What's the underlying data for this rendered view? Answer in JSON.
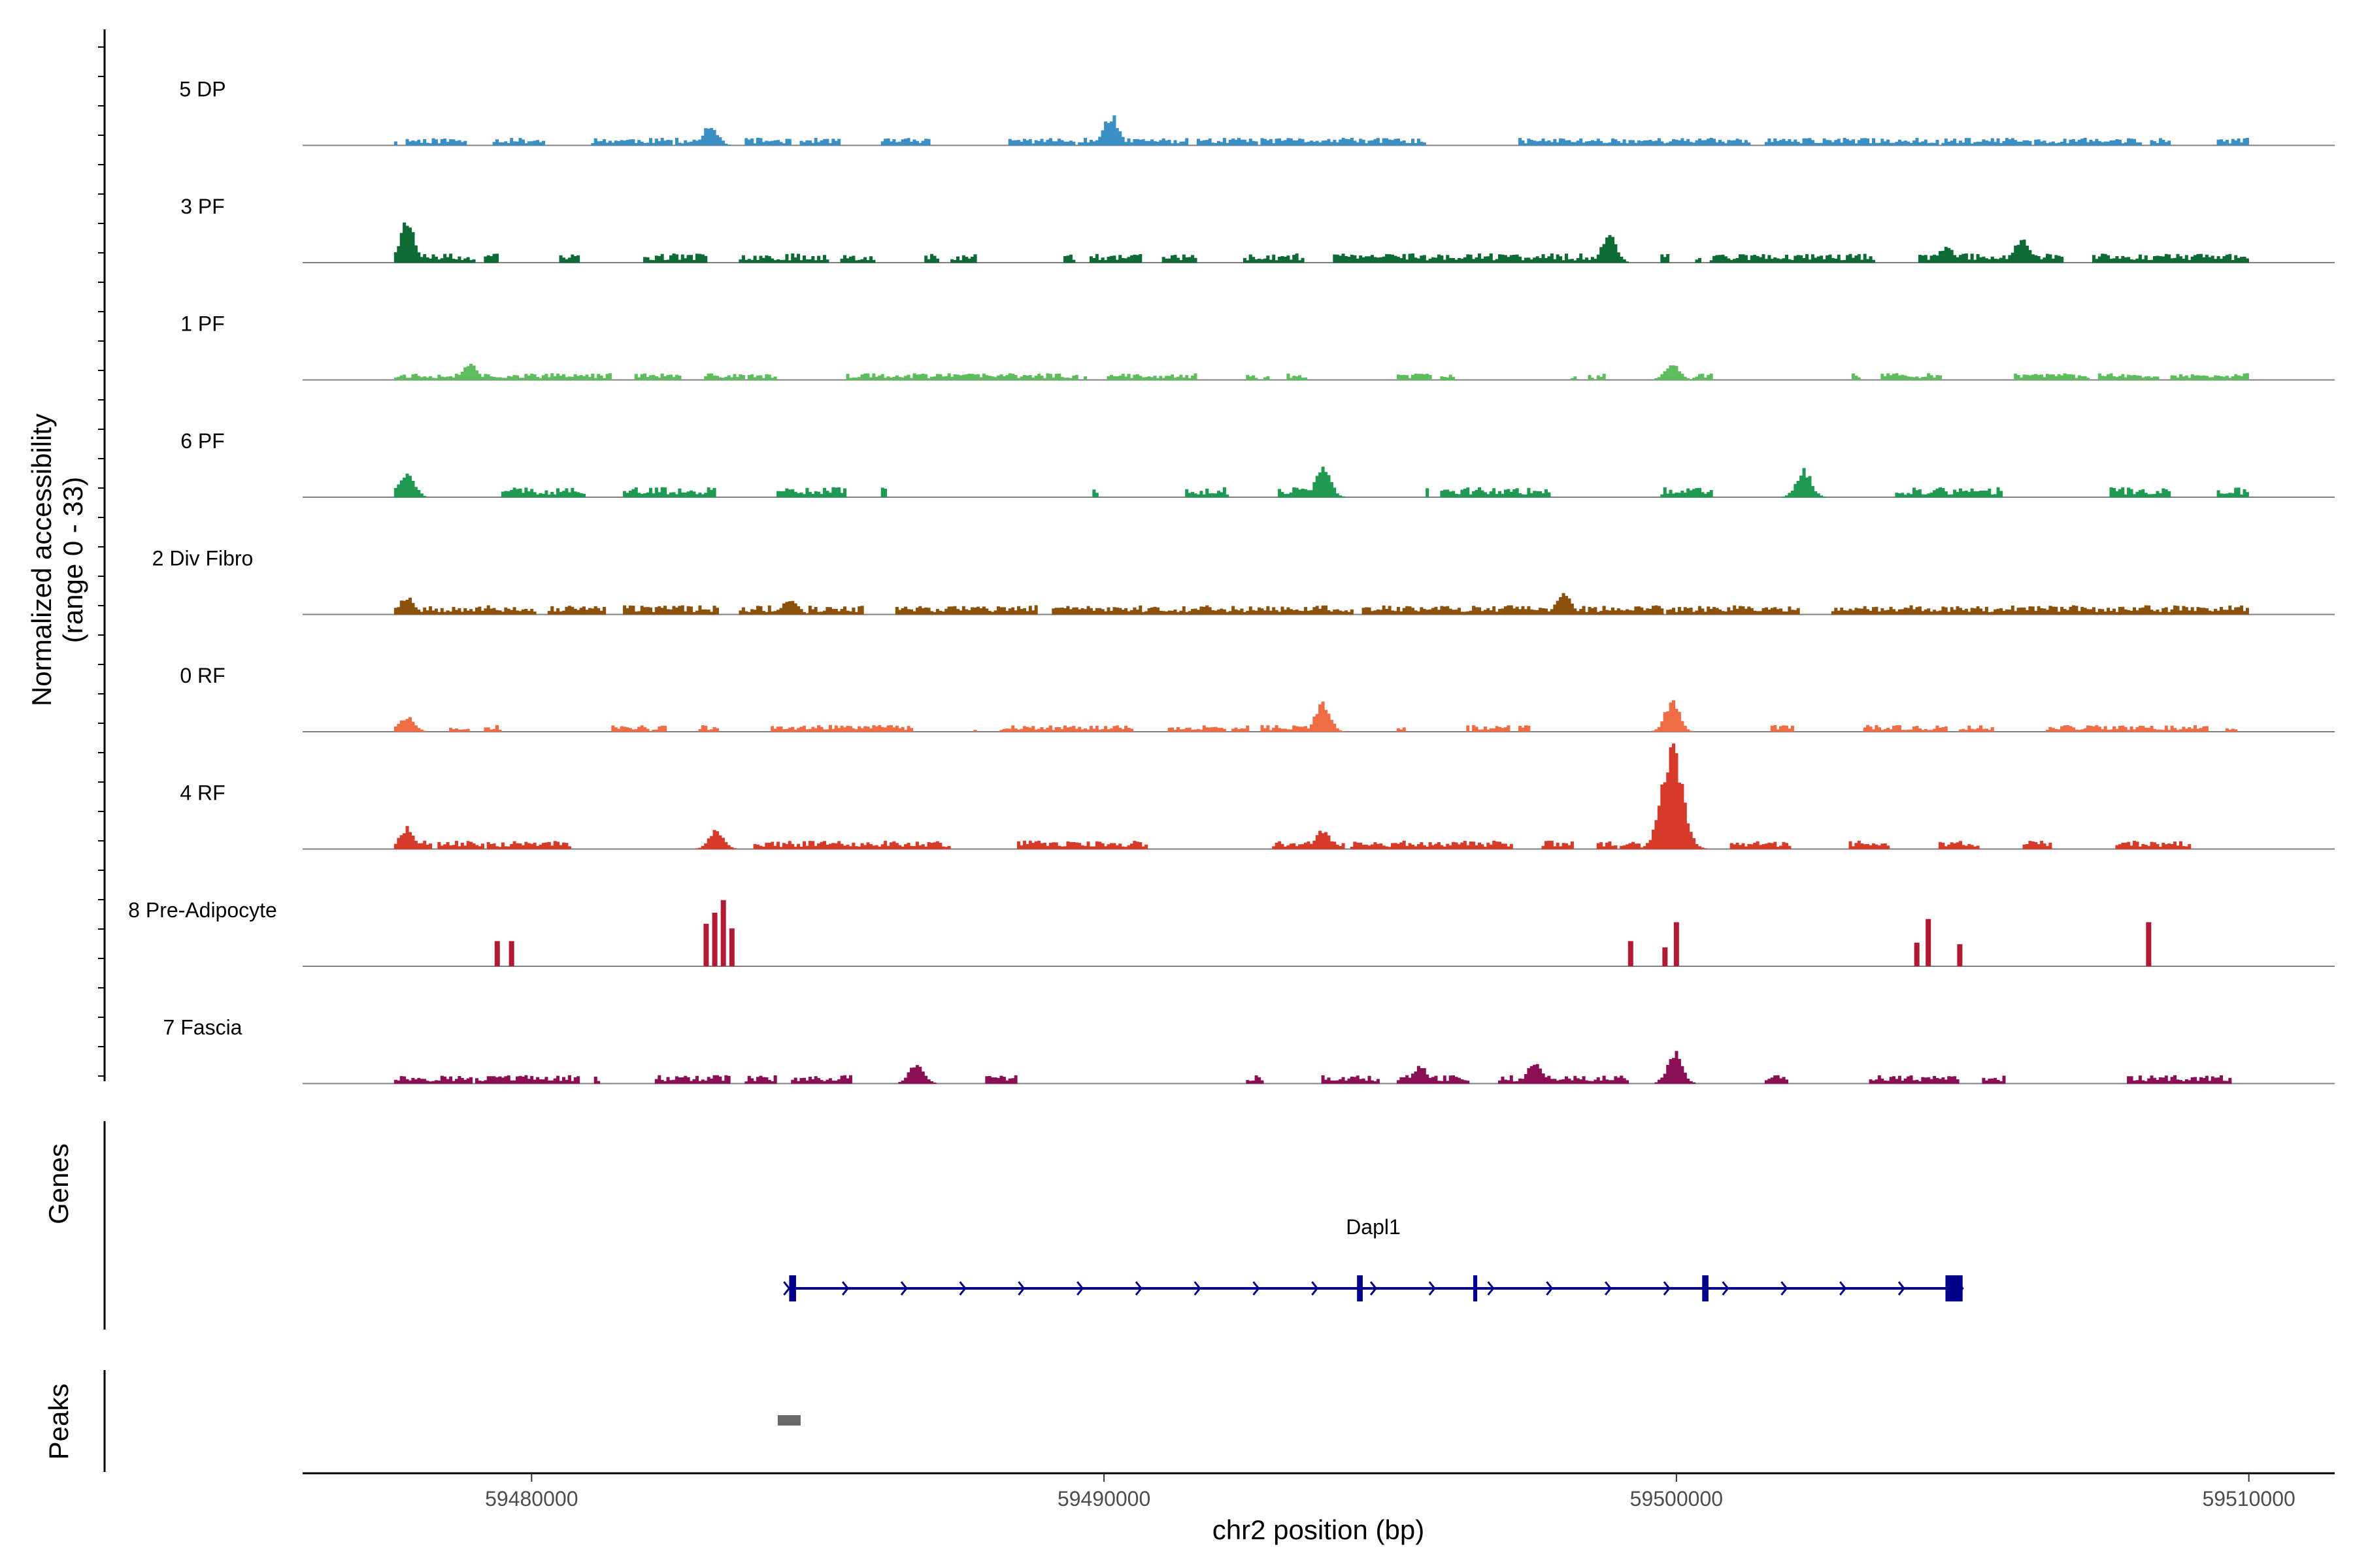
{
  "chart_data": {
    "type": "area",
    "title": "",
    "y_axis_title_line1": "Normalized accessibility",
    "y_axis_title_line2": "(range 0 - 33)",
    "y_range": [
      0,
      33
    ],
    "x_label": "chr2 position (bp)",
    "x_range": [
      59476000,
      59511500
    ],
    "x_ticks": [
      59480000,
      59490000,
      59500000,
      59510000
    ],
    "x_tick_labels": [
      "59480000",
      "59490000",
      "59500000",
      "59510000"
    ],
    "region": [
      59477600,
      59510000
    ],
    "tracks": [
      {
        "name": "5 DP",
        "color": "#3a8fc4",
        "seed": 11,
        "density": 0.62,
        "base": 1.8,
        "peaks": [
          [
            59483100,
            6.5
          ],
          [
            59490100,
            10.0
          ],
          [
            59483100,
            4.0
          ]
        ]
      },
      {
        "name": "3 PF",
        "color": "#0e6b35",
        "seed": 23,
        "density": 0.72,
        "base": 2.2,
        "peaks": [
          [
            59477800,
            14.0
          ],
          [
            59498800,
            9.0
          ],
          [
            59506000,
            8.0
          ],
          [
            59504700,
            5.5
          ]
        ]
      },
      {
        "name": "1 PF",
        "color": "#5fbd5f",
        "seed": 37,
        "density": 0.55,
        "base": 1.6,
        "peaks": [
          [
            59478900,
            5.0
          ],
          [
            59499900,
            5.5
          ]
        ]
      },
      {
        "name": "6 PF",
        "color": "#1f9a52",
        "seed": 41,
        "density": 0.38,
        "base": 2.4,
        "peaks": [
          [
            59477800,
            8.5
          ],
          [
            59493800,
            10.5
          ],
          [
            59502200,
            9.0
          ]
        ]
      },
      {
        "name": "2 Div Fibro",
        "color": "#8c510a",
        "seed": 53,
        "density": 0.8,
        "base": 2.2,
        "peaks": [
          [
            59477800,
            6.0
          ],
          [
            59498000,
            7.0
          ],
          [
            59484500,
            5.5
          ]
        ]
      },
      {
        "name": "0 RF",
        "color": "#ef6c45",
        "seed": 67,
        "density": 0.68,
        "base": 1.6,
        "peaks": [
          [
            59493800,
            9.5
          ],
          [
            59499900,
            10.0
          ],
          [
            59477800,
            5.0
          ]
        ]
      },
      {
        "name": "4 RF",
        "color": "#d63b2a",
        "seed": 71,
        "density": 0.58,
        "base": 2.0,
        "peaks": [
          [
            59499900,
            33.0
          ],
          [
            59477800,
            7.0
          ],
          [
            59483200,
            6.0
          ],
          [
            59493800,
            6.0
          ]
        ]
      },
      {
        "name": "8 Pre-Adipocyte",
        "color": "#b01a33",
        "seed": 83,
        "mode": "sparse",
        "bars": [
          [
            59479400,
            8.0
          ],
          [
            59479650,
            8.0
          ],
          [
            59483050,
            13.5
          ],
          [
            59483200,
            17.0
          ],
          [
            59483350,
            21.0
          ],
          [
            59483500,
            12.0
          ],
          [
            59499200,
            8.0
          ],
          [
            59499800,
            6.0
          ],
          [
            59500000,
            14.0
          ],
          [
            59504200,
            7.5
          ],
          [
            59504400,
            15.0
          ],
          [
            59504950,
            7.0
          ],
          [
            59508250,
            14.0
          ]
        ]
      },
      {
        "name": "7 Fascia",
        "color": "#8b0f55",
        "seed": 97,
        "density": 0.5,
        "base": 2.0,
        "peaks": [
          [
            59499950,
            10.5
          ],
          [
            59497500,
            7.0
          ],
          [
            59486700,
            6.5
          ],
          [
            59495500,
            5.5
          ]
        ]
      }
    ],
    "genes": {
      "panel_title": "Genes",
      "label": "Dapl1",
      "start": 59484500,
      "end": 59505000,
      "strand": "+",
      "exons": [
        [
          59484500,
          59484620
        ],
        [
          59494420,
          59494520
        ],
        [
          59496450,
          59496520
        ],
        [
          59500450,
          59500560
        ],
        [
          59504700,
          59505000
        ]
      ],
      "color": "#00008b"
    },
    "peaks": {
      "panel_title": "Peaks",
      "regions": [
        [
          59484300,
          59484700
        ]
      ],
      "color": "#696969"
    }
  }
}
